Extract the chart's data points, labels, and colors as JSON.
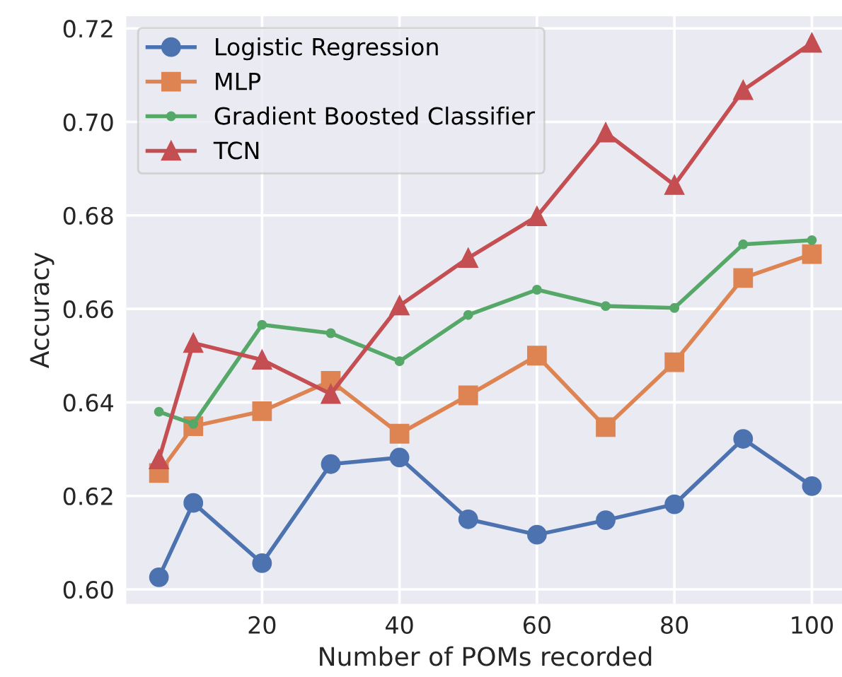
{
  "chart_data": {
    "type": "line",
    "xlabel": "Number of POMs recorded",
    "ylabel": "Accuracy",
    "x": [
      5,
      10,
      20,
      30,
      40,
      50,
      60,
      70,
      80,
      90,
      100
    ],
    "xlim": [
      0.25,
      104.75
    ],
    "xticks": [
      20,
      40,
      60,
      80,
      100
    ],
    "ylim": [
      0.5969,
      0.7226
    ],
    "yticks": [
      {
        "value": 0.6,
        "label": "0.60"
      },
      {
        "value": 0.62,
        "label": "0.62"
      },
      {
        "value": 0.64,
        "label": "0.64"
      },
      {
        "value": 0.66,
        "label": "0.66"
      },
      {
        "value": 0.68,
        "label": "0.68"
      },
      {
        "value": 0.7,
        "label": "0.70"
      },
      {
        "value": 0.72,
        "label": "0.72"
      }
    ],
    "grid": true,
    "legend": "top left",
    "line_style": "solid",
    "series": [
      {
        "name": "Logistic Regression",
        "color": "#4c72b0",
        "marker": "circle",
        "values": [
          0.6026,
          0.6185,
          0.6056,
          0.6268,
          0.6282,
          0.615,
          0.6117,
          0.6148,
          0.6182,
          0.6322,
          0.6221
        ]
      },
      {
        "name": "MLP",
        "color": "#dd8452",
        "marker": "square",
        "values": [
          0.6249,
          0.6349,
          0.6381,
          0.6446,
          0.6333,
          0.6415,
          0.65,
          0.6347,
          0.6486,
          0.6666,
          0.6717
        ]
      },
      {
        "name": "Gradient Boosted Classifier",
        "color": "#55a868",
        "marker": "point",
        "values": [
          0.638,
          0.6354,
          0.6566,
          0.6548,
          0.6488,
          0.6587,
          0.6641,
          0.6606,
          0.6602,
          0.6738,
          0.6747
        ]
      },
      {
        "name": "TCN",
        "color": "#c44e52",
        "marker": "triangle",
        "values": [
          0.6278,
          0.6527,
          0.6491,
          0.6418,
          0.6607,
          0.6709,
          0.6798,
          0.6977,
          0.6865,
          0.7068,
          0.7169
        ]
      }
    ]
  }
}
